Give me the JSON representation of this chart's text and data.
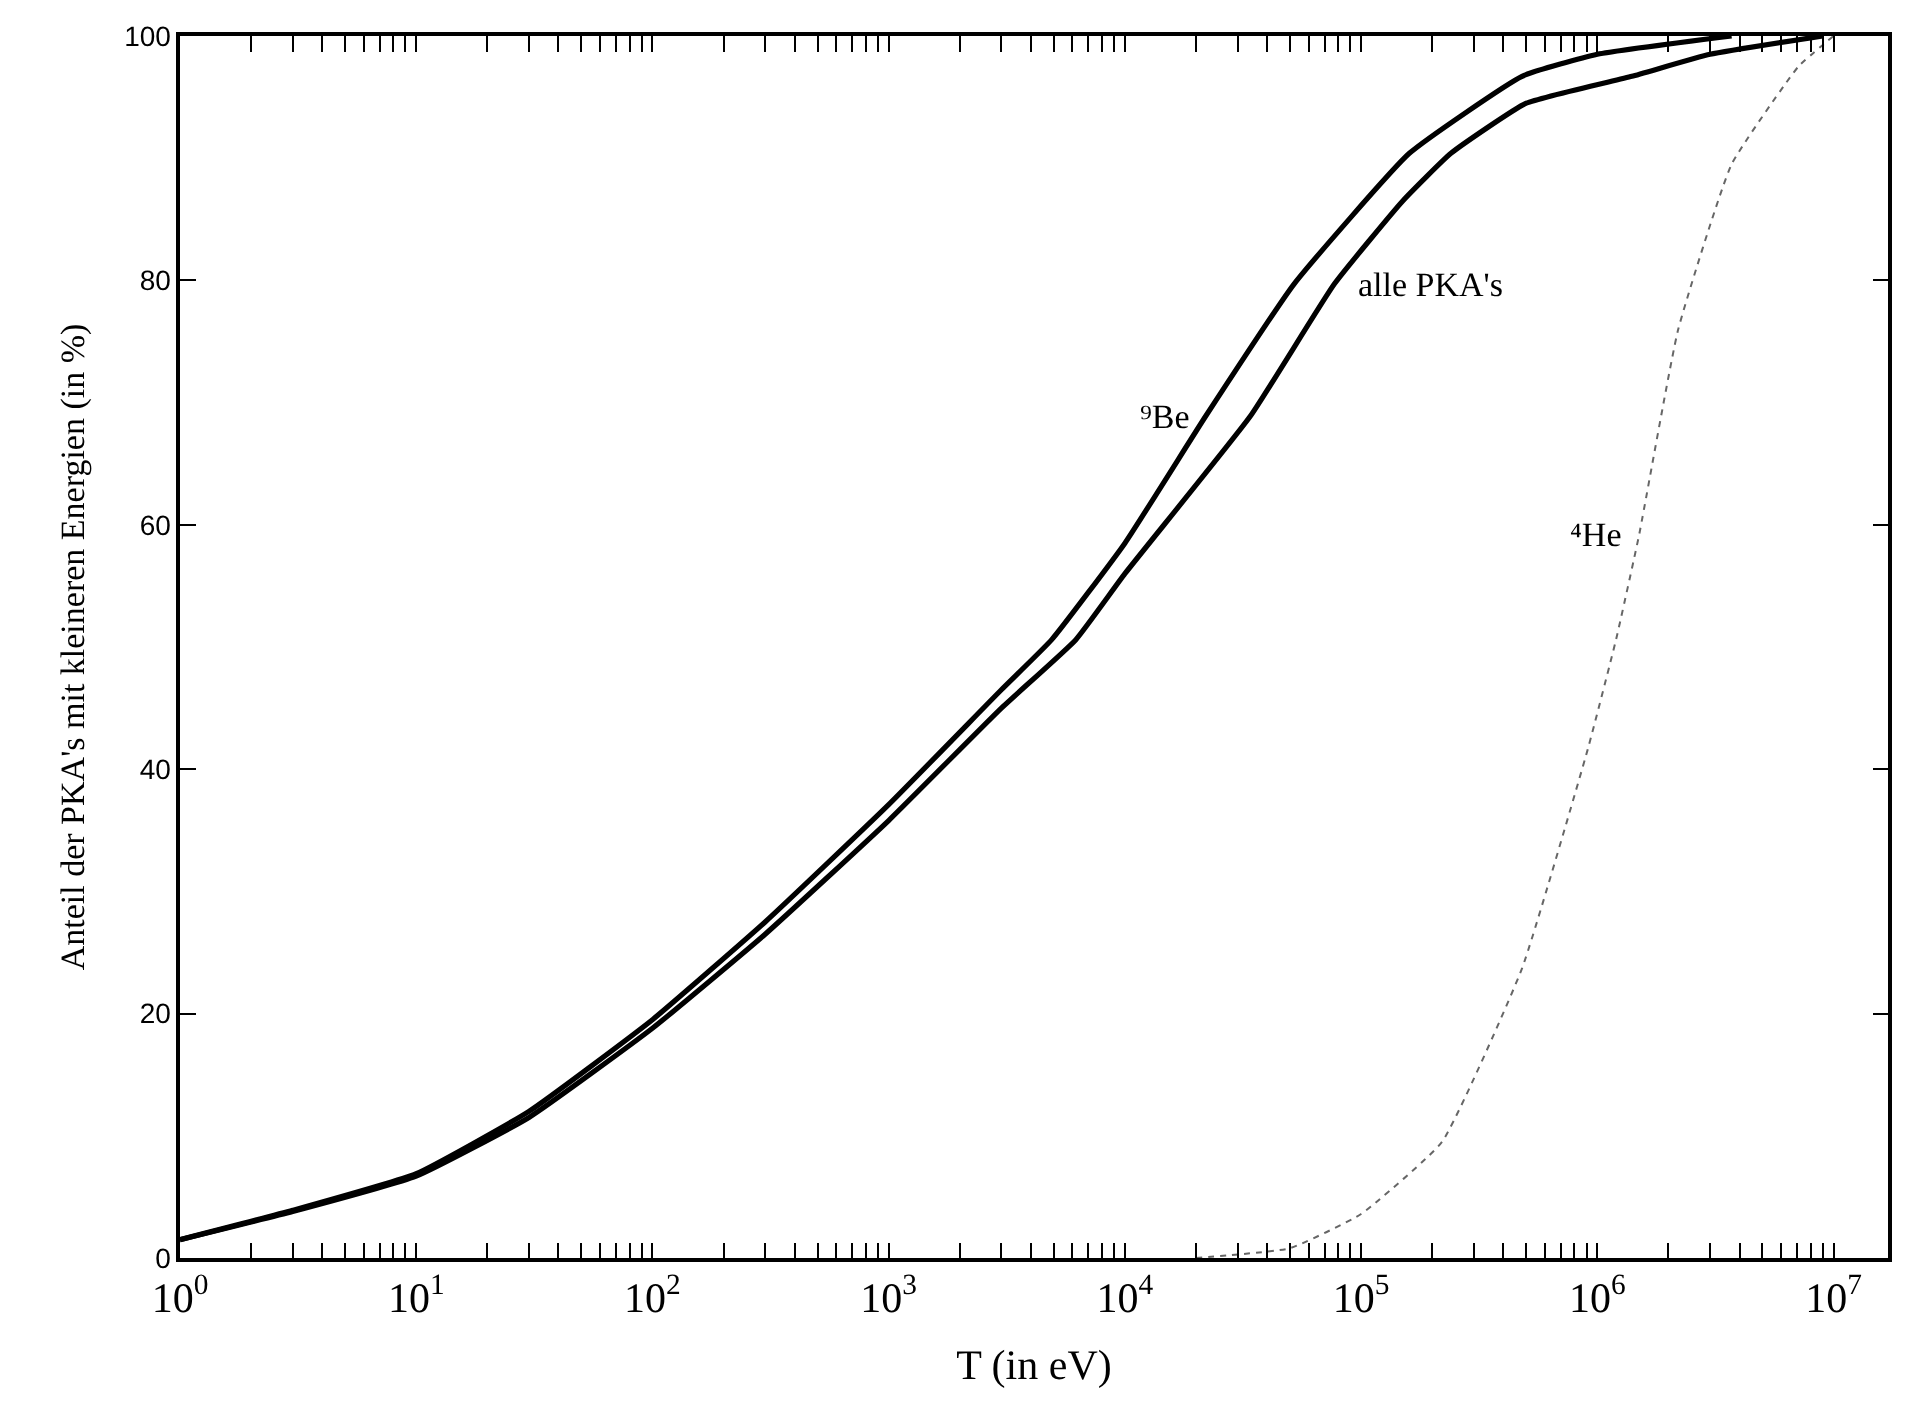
{
  "chart_data": {
    "type": "line",
    "xlabel": "T (in eV)",
    "ylabel": "Anteil der PKA's mit kleineren Energien (in %)",
    "log": "x",
    "legend": false,
    "marker": "none",
    "xlim": [
      1,
      17000000
    ],
    "ylim": [
      0,
      100
    ],
    "xticks": [
      {
        "value": 1,
        "label": "10$^{0}$"
      },
      {
        "value": 2,
        "label": null
      },
      {
        "value": 3,
        "label": null
      },
      {
        "value": 4,
        "label": null
      },
      {
        "value": 5,
        "label": null
      },
      {
        "value": 6,
        "label": null
      },
      {
        "value": 7,
        "label": null
      },
      {
        "value": 8,
        "label": null
      },
      {
        "value": 9,
        "label": null
      },
      {
        "value": 10,
        "label": "10$^{1}$"
      },
      {
        "value": 20,
        "label": null
      },
      {
        "value": 30,
        "label": null
      },
      {
        "value": 40,
        "label": null
      },
      {
        "value": 50,
        "label": null
      },
      {
        "value": 60,
        "label": null
      },
      {
        "value": 70,
        "label": null
      },
      {
        "value": 80,
        "label": null
      },
      {
        "value": 90,
        "label": null
      },
      {
        "value": 100,
        "label": "10$^{2}$"
      },
      {
        "value": 200,
        "label": null
      },
      {
        "value": 300,
        "label": null
      },
      {
        "value": 400,
        "label": null
      },
      {
        "value": 500,
        "label": null
      },
      {
        "value": 600,
        "label": null
      },
      {
        "value": 700,
        "label": null
      },
      {
        "value": 800,
        "label": null
      },
      {
        "value": 900,
        "label": null
      },
      {
        "value": 1000,
        "label": "10$^{3}$"
      },
      {
        "value": 2000,
        "label": null
      },
      {
        "value": 3000,
        "label": null
      },
      {
        "value": 4000,
        "label": null
      },
      {
        "value": 5000,
        "label": null
      },
      {
        "value": 6000,
        "label": null
      },
      {
        "value": 7000,
        "label": null
      },
      {
        "value": 8000,
        "label": null
      },
      {
        "value": 9000,
        "label": null
      },
      {
        "value": 10000,
        "label": "10$^{4}$"
      },
      {
        "value": 20000,
        "label": null
      },
      {
        "value": 30000,
        "label": null
      },
      {
        "value": 40000,
        "label": null
      },
      {
        "value": 50000,
        "label": null
      },
      {
        "value": 60000,
        "label": null
      },
      {
        "value": 70000,
        "label": null
      },
      {
        "value": 80000,
        "label": null
      },
      {
        "value": 90000,
        "label": null
      },
      {
        "value": 100000,
        "label": "10$^{5}$"
      },
      {
        "value": 200000,
        "label": null
      },
      {
        "value": 300000,
        "label": null
      },
      {
        "value": 400000,
        "label": null
      },
      {
        "value": 500000,
        "label": null
      },
      {
        "value": 600000,
        "label": null
      },
      {
        "value": 700000,
        "label": null
      },
      {
        "value": 800000,
        "label": null
      },
      {
        "value": 900000,
        "label": null
      },
      {
        "value": 1000000,
        "label": "10$^{6}$"
      },
      {
        "value": 2000000,
        "label": null
      },
      {
        "value": 3000000,
        "label": null
      },
      {
        "value": 4000000,
        "label": null
      },
      {
        "value": 5000000,
        "label": null
      },
      {
        "value": 6000000,
        "label": null
      },
      {
        "value": 7000000,
        "label": null
      },
      {
        "value": 8000000,
        "label": null
      },
      {
        "value": 9000000,
        "label": null
      },
      {
        "value": 10000000,
        "label": "10$^{7}$"
      }
    ],
    "yticks": [
      0,
      20,
      40,
      60,
      80,
      100
    ],
    "series": [
      {
        "name": "⁹Be",
        "color": "#000000",
        "line_style": "solid",
        "x": [
          1,
          3,
          10,
          30,
          100,
          300,
          1000,
          3000,
          4900,
          10000,
          22000,
          52000,
          160000,
          480000,
          1000000,
          3700000
        ],
        "values": [
          1.5,
          3.9,
          6.9,
          12,
          19.5,
          27.5,
          37.1,
          46.5,
          50.6,
          58.5,
          68.9,
          79.7,
          90.4,
          96.7,
          98.5,
          100
        ]
      },
      {
        "name": "alle PKA's",
        "color": "#000000",
        "line_style": "solid",
        "x": [
          1,
          3,
          10,
          30,
          100,
          300,
          1000,
          3000,
          6200,
          10000,
          34000,
          77000,
          150000,
          240000,
          500000,
          1400000,
          3000000,
          9000000
        ],
        "values": [
          1.5,
          3.8,
          6.7,
          11.5,
          18.8,
          26.5,
          35.8,
          45,
          50.6,
          56,
          68.9,
          79.7,
          86.5,
          90.4,
          94.5,
          96.7,
          98.5,
          100
        ]
      },
      {
        "name": "⁴He",
        "color": "#666666",
        "line_style": "dotted",
        "x": [
          20000,
          50000,
          100000,
          220000,
          480000,
          910000,
          1200000,
          1500000,
          2200000,
          3700000,
          7100000,
          10000000
        ],
        "values": [
          0,
          0.8,
          3.6,
          9.5,
          23.7,
          41.6,
          50.6,
          59.1,
          76,
          89.5,
          97.5,
          100
        ]
      }
    ]
  }
}
